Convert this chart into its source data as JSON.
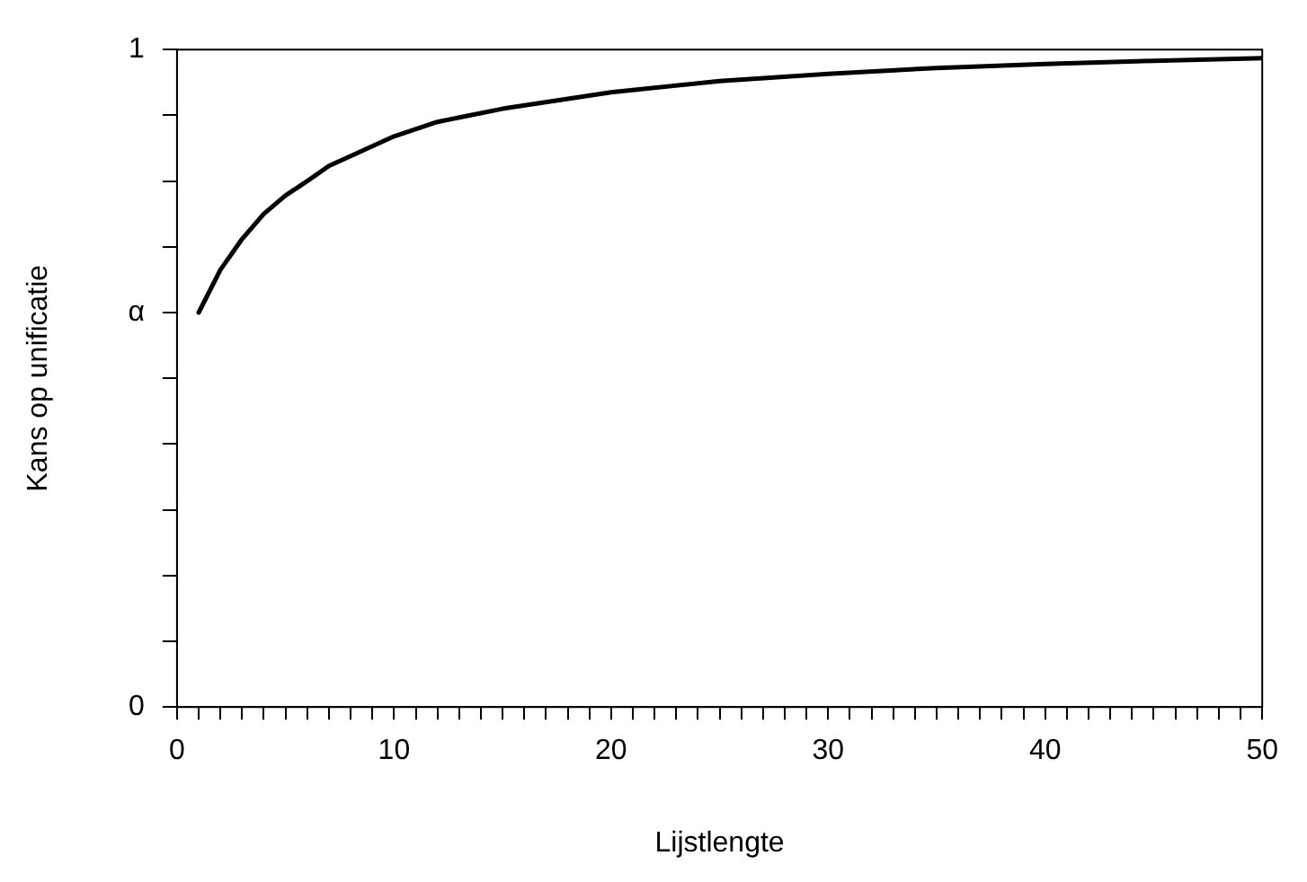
{
  "chart_data": {
    "type": "line",
    "xlabel": "Lijstlengte",
    "ylabel": "Kans op unificatie",
    "series": [
      {
        "color": "#000000",
        "x": [
          1,
          2,
          3,
          4,
          5,
          6,
          7,
          8,
          10,
          12,
          15,
          20,
          25,
          30,
          35,
          40,
          45,
          50
        ],
        "values": [
          0.6,
          0.665,
          0.712,
          0.75,
          0.778,
          0.8,
          0.823,
          0.838,
          0.868,
          0.89,
          0.91,
          0.935,
          0.952,
          0.963,
          0.972,
          0.978,
          0.983,
          0.987
        ]
      }
    ],
    "xlim": [
      0,
      50
    ],
    "ylim": [
      0,
      1
    ],
    "xticks": [
      0,
      {
        "value": 1,
        "label": null
      },
      {
        "value": 2,
        "label": null
      },
      {
        "value": 3,
        "label": null
      },
      {
        "value": 4,
        "label": null
      },
      {
        "value": 5,
        "label": null
      },
      {
        "value": 6,
        "label": null
      },
      {
        "value": 7,
        "label": null
      },
      {
        "value": 8,
        "label": null
      },
      {
        "value": 9,
        "label": null
      },
      10,
      {
        "value": 11,
        "label": null
      },
      {
        "value": 12,
        "label": null
      },
      {
        "value": 13,
        "label": null
      },
      {
        "value": 14,
        "label": null
      },
      {
        "value": 15,
        "label": null
      },
      {
        "value": 16,
        "label": null
      },
      {
        "value": 17,
        "label": null
      },
      {
        "value": 18,
        "label": null
      },
      {
        "value": 19,
        "label": null
      },
      20,
      {
        "value": 21,
        "label": null
      },
      {
        "value": 22,
        "label": null
      },
      {
        "value": 23,
        "label": null
      },
      {
        "value": 24,
        "label": null
      },
      {
        "value": 25,
        "label": null
      },
      {
        "value": 26,
        "label": null
      },
      {
        "value": 27,
        "label": null
      },
      {
        "value": 28,
        "label": null
      },
      {
        "value": 29,
        "label": null
      },
      30,
      {
        "value": 31,
        "label": null
      },
      {
        "value": 32,
        "label": null
      },
      {
        "value": 33,
        "label": null
      },
      {
        "value": 34,
        "label": null
      },
      {
        "value": 35,
        "label": null
      },
      {
        "value": 36,
        "label": null
      },
      {
        "value": 37,
        "label": null
      },
      {
        "value": 38,
        "label": null
      },
      {
        "value": 39,
        "label": null
      },
      40,
      {
        "value": 41,
        "label": null
      },
      {
        "value": 42,
        "label": null
      },
      {
        "value": 43,
        "label": null
      },
      {
        "value": 44,
        "label": null
      },
      {
        "value": 45,
        "label": null
      },
      {
        "value": 46,
        "label": null
      },
      {
        "value": 47,
        "label": null
      },
      {
        "value": 48,
        "label": null
      },
      {
        "value": 49,
        "label": null
      },
      50
    ],
    "yticks": [
      0,
      {
        "value": 0.1,
        "label": null
      },
      {
        "value": 0.2,
        "label": null
      },
      {
        "value": 0.3,
        "label": null
      },
      {
        "value": 0.4,
        "label": null
      },
      {
        "value": 0.5,
        "label": null
      },
      {
        "value": 0.6,
        "label": "α"
      },
      {
        "value": 0.7,
        "label": null
      },
      {
        "value": 0.8,
        "label": null
      },
      {
        "value": 0.9,
        "label": null
      },
      1
    ],
    "grid": false,
    "legend": false,
    "marker": "none",
    "line_style": "solid"
  }
}
